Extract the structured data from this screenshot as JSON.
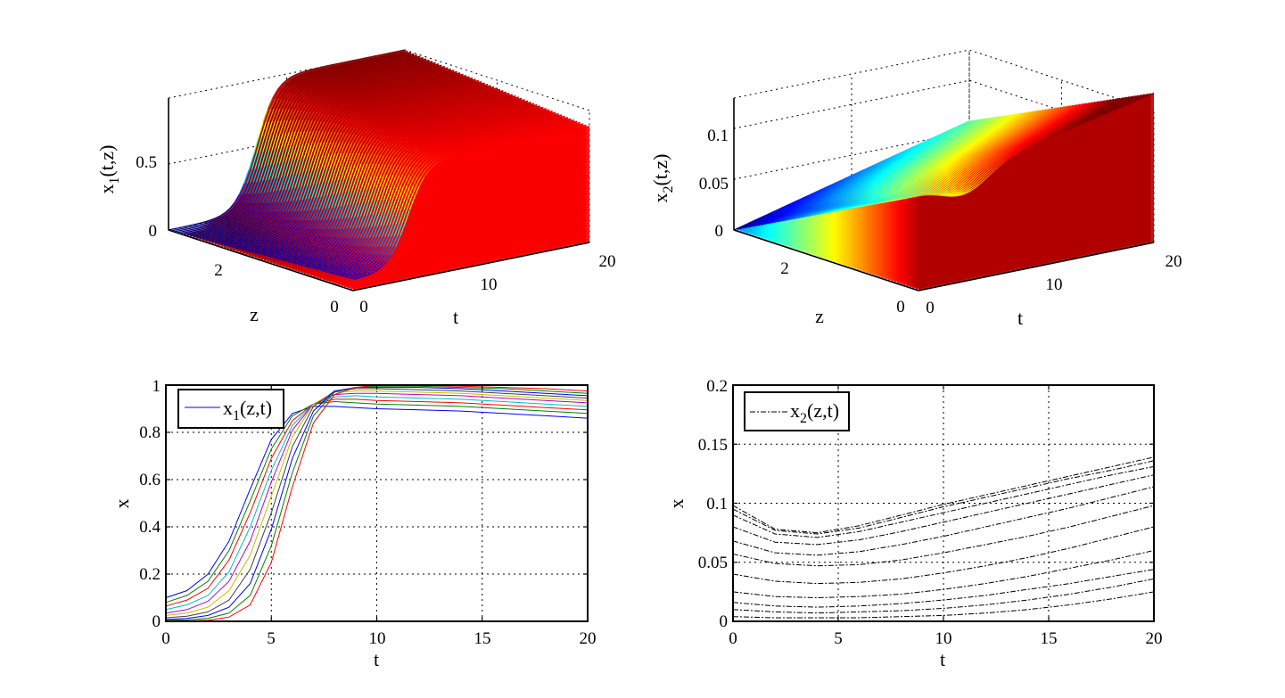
{
  "chart_data": [
    {
      "type": "surface",
      "zlabel_main": "x",
      "zlabel_sub": "1",
      "zlabel_tail": "(t,z)",
      "xlabel": "t",
      "ylabel": "z",
      "t_ticks": [
        "0",
        "10",
        "20"
      ],
      "z_ticks": [
        "0",
        "2"
      ],
      "v_ticks": [
        "0",
        "0.5"
      ],
      "t_range": [
        0,
        20
      ],
      "z_range": [
        0,
        4
      ],
      "v_range": [
        0,
        1
      ],
      "grid": true
    },
    {
      "type": "surface",
      "zlabel_main": "x",
      "zlabel_sub": "2",
      "zlabel_tail": "(t,z)",
      "xlabel": "t",
      "ylabel": "z",
      "t_ticks": [
        "0",
        "10",
        "20"
      ],
      "z_ticks": [
        "0",
        "2"
      ],
      "v_ticks": [
        "0",
        "0.05",
        "0.1"
      ],
      "t_range": [
        0,
        20
      ],
      "z_range": [
        0,
        4
      ],
      "v_range": [
        0,
        0.13
      ],
      "grid": true
    },
    {
      "type": "line",
      "xlabel": "t",
      "ylabel": "x",
      "xlim": [
        0,
        20
      ],
      "ylim": [
        0,
        1
      ],
      "x_ticks": [
        "0",
        "5",
        "10",
        "15",
        "20"
      ],
      "y_ticks": [
        "0",
        "0.2",
        "0.4",
        "0.6",
        "0.8",
        "1"
      ],
      "legend_main": "x",
      "legend_sub": "1",
      "legend_tail": "(z,t)",
      "legend_position": "top-left",
      "grid": true,
      "x": [
        0,
        1,
        2,
        3,
        4,
        5,
        6,
        7,
        8,
        9,
        10,
        12,
        14,
        16,
        18,
        20
      ],
      "series": [
        {
          "color": "#0000ff",
          "values": [
            0.1,
            0.13,
            0.2,
            0.34,
            0.56,
            0.77,
            0.88,
            0.91,
            0.91,
            0.905,
            0.9,
            0.895,
            0.89,
            0.88,
            0.87,
            0.86
          ]
        },
        {
          "color": "#008000",
          "values": [
            0.08,
            0.11,
            0.17,
            0.3,
            0.51,
            0.73,
            0.87,
            0.92,
            0.93,
            0.925,
            0.92,
            0.915,
            0.91,
            0.9,
            0.89,
            0.88
          ]
        },
        {
          "color": "#ff0000",
          "values": [
            0.065,
            0.09,
            0.14,
            0.26,
            0.46,
            0.69,
            0.85,
            0.92,
            0.94,
            0.94,
            0.935,
            0.93,
            0.925,
            0.915,
            0.905,
            0.895
          ]
        },
        {
          "color": "#00bfbf",
          "values": [
            0.05,
            0.07,
            0.11,
            0.21,
            0.4,
            0.64,
            0.83,
            0.92,
            0.95,
            0.955,
            0.95,
            0.945,
            0.94,
            0.93,
            0.92,
            0.91
          ]
        },
        {
          "color": "#bf00bf",
          "values": [
            0.035,
            0.05,
            0.085,
            0.17,
            0.34,
            0.59,
            0.81,
            0.92,
            0.96,
            0.965,
            0.965,
            0.96,
            0.955,
            0.945,
            0.935,
            0.925
          ]
        },
        {
          "color": "#bfbf00",
          "values": [
            0.025,
            0.035,
            0.06,
            0.13,
            0.28,
            0.53,
            0.78,
            0.92,
            0.97,
            0.975,
            0.975,
            0.97,
            0.965,
            0.955,
            0.945,
            0.935
          ]
        },
        {
          "color": "#404040",
          "values": [
            0.015,
            0.022,
            0.04,
            0.09,
            0.22,
            0.46,
            0.74,
            0.91,
            0.975,
            0.985,
            0.985,
            0.98,
            0.975,
            0.965,
            0.955,
            0.945
          ]
        },
        {
          "color": "#0000ff",
          "values": [
            0.008,
            0.012,
            0.025,
            0.06,
            0.16,
            0.39,
            0.69,
            0.89,
            0.975,
            0.99,
            0.99,
            0.99,
            0.985,
            0.975,
            0.965,
            0.955
          ]
        },
        {
          "color": "#008000",
          "values": [
            0.004,
            0.006,
            0.013,
            0.035,
            0.11,
            0.32,
            0.63,
            0.87,
            0.97,
            0.99,
            0.995,
            0.995,
            0.99,
            0.985,
            0.975,
            0.965
          ]
        },
        {
          "color": "#ff0000",
          "values": [
            0.001,
            0.002,
            0.005,
            0.018,
            0.07,
            0.25,
            0.57,
            0.84,
            0.96,
            0.99,
            1.0,
            1.0,
            0.995,
            0.99,
            0.985,
            0.975
          ]
        }
      ]
    },
    {
      "type": "line",
      "xlabel": "t",
      "ylabel": "x",
      "xlim": [
        0,
        20
      ],
      "ylim": [
        0,
        0.2
      ],
      "x_ticks": [
        "0",
        "5",
        "10",
        "15",
        "20"
      ],
      "y_ticks": [
        "0",
        "0.05",
        "0.1",
        "0.15",
        "0.2"
      ],
      "legend_main": "x",
      "legend_sub": "2",
      "legend_tail": "(z,t)",
      "legend_position": "top-left",
      "grid": true,
      "x": [
        0,
        2,
        4,
        6,
        8,
        10,
        12,
        14,
        16,
        18,
        20
      ],
      "series": [
        {
          "values": [
            0.098,
            0.078,
            0.075,
            0.081,
            0.09,
            0.099,
            0.107,
            0.115,
            0.123,
            0.131,
            0.139
          ]
        },
        {
          "values": [
            0.095,
            0.077,
            0.074,
            0.079,
            0.088,
            0.097,
            0.105,
            0.113,
            0.121,
            0.128,
            0.136
          ]
        },
        {
          "values": [
            0.09,
            0.074,
            0.071,
            0.076,
            0.084,
            0.092,
            0.1,
            0.108,
            0.116,
            0.124,
            0.131
          ]
        },
        {
          "values": [
            0.08,
            0.067,
            0.065,
            0.069,
            0.076,
            0.084,
            0.092,
            0.1,
            0.108,
            0.116,
            0.124
          ]
        },
        {
          "values": [
            0.068,
            0.058,
            0.056,
            0.059,
            0.065,
            0.072,
            0.08,
            0.088,
            0.096,
            0.105,
            0.114
          ]
        },
        {
          "values": [
            0.057,
            0.049,
            0.047,
            0.048,
            0.052,
            0.058,
            0.065,
            0.072,
            0.08,
            0.089,
            0.098
          ]
        },
        {
          "values": [
            0.04,
            0.034,
            0.032,
            0.033,
            0.036,
            0.041,
            0.047,
            0.054,
            0.062,
            0.071,
            0.08
          ]
        },
        {
          "values": [
            0.025,
            0.021,
            0.02,
            0.021,
            0.023,
            0.027,
            0.032,
            0.038,
            0.045,
            0.052,
            0.06
          ]
        },
        {
          "values": [
            0.016,
            0.013,
            0.012,
            0.013,
            0.015,
            0.018,
            0.022,
            0.027,
            0.032,
            0.038,
            0.044
          ]
        },
        {
          "values": [
            0.01,
            0.008,
            0.007,
            0.008,
            0.009,
            0.011,
            0.014,
            0.018,
            0.023,
            0.029,
            0.036
          ]
        },
        {
          "values": [
            0.004,
            0.003,
            0.003,
            0.003,
            0.004,
            0.005,
            0.007,
            0.01,
            0.014,
            0.019,
            0.025
          ]
        }
      ]
    }
  ]
}
